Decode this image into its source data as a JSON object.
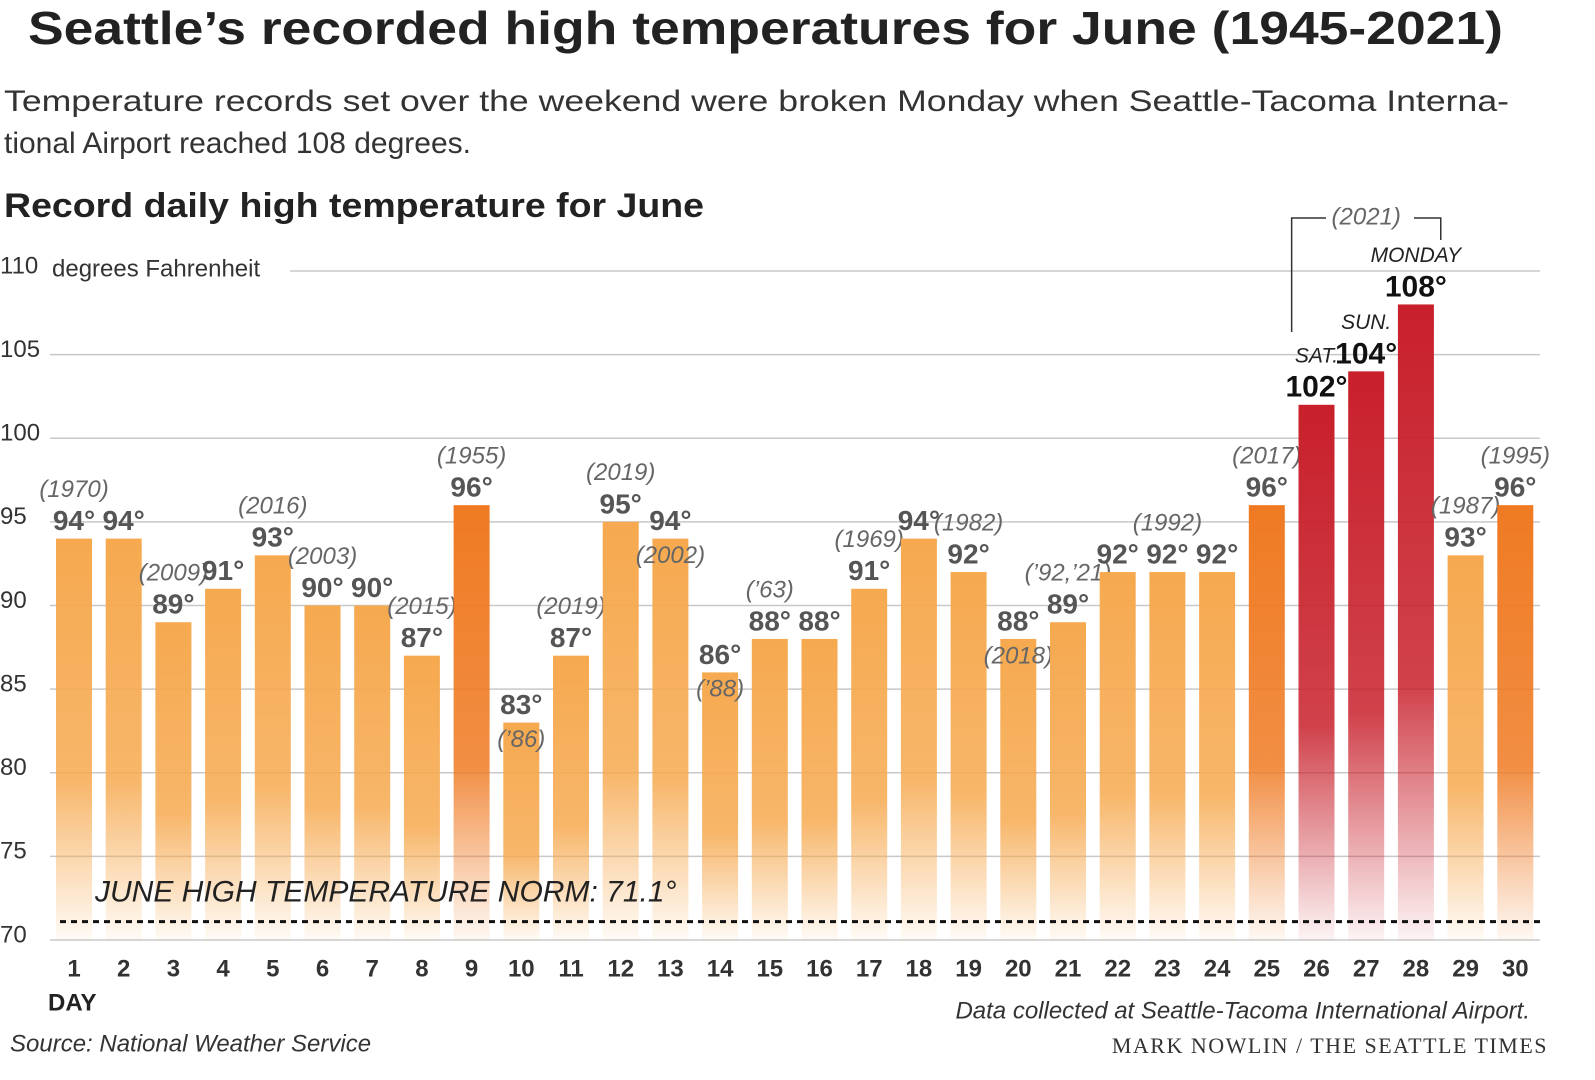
{
  "chart_data": {
    "type": "bar",
    "title": "Seattle’s recorded high temperatures for June (1945-2021)",
    "subtitle_lines": [
      "Temperature records set over the weekend were broken Monday when Seattle-Tacoma Interna-",
      "tional Airport reached 108 degrees."
    ],
    "chart_title": "Record daily high temperature for June",
    "y_axis_label": "degrees Fahrenheit",
    "x_axis_label": "DAY",
    "categories": [
      "1",
      "2",
      "3",
      "4",
      "5",
      "6",
      "7",
      "8",
      "9",
      "10",
      "11",
      "12",
      "13",
      "14",
      "15",
      "16",
      "17",
      "18",
      "19",
      "20",
      "21",
      "22",
      "23",
      "24",
      "25",
      "26",
      "27",
      "28",
      "29",
      "30"
    ],
    "values": [
      94,
      94,
      89,
      91,
      93,
      90,
      90,
      87,
      96,
      83,
      87,
      95,
      94,
      86,
      88,
      88,
      91,
      94,
      92,
      88,
      89,
      92,
      92,
      92,
      96,
      102,
      104,
      108,
      93,
      96
    ],
    "value_labels": [
      "94°",
      "94°",
      "89°",
      "91°",
      "93°",
      "90°",
      "90°",
      "87°",
      "96°",
      "83°",
      "87°",
      "95°",
      "94°",
      "86°",
      "88°",
      "88°",
      "91°",
      "94°",
      "92°",
      "88°",
      "89°",
      "92°",
      "92°",
      "92°",
      "96°",
      "102°",
      "104°",
      "108°",
      "93°",
      "96°"
    ],
    "year_labels": [
      "(1970)",
      null,
      "(2009)",
      null,
      "(2016)",
      "(2003)",
      null,
      "(2015)",
      "(1955)",
      "(’86)",
      "(2019)",
      "(2019)",
      "(2002)",
      "(’88)",
      "(’63)",
      null,
      "(1969)",
      null,
      "(1982)",
      "(2018)",
      "(’92,’21)",
      null,
      "(1992)",
      null,
      "(2017)",
      null,
      "(2021)",
      null,
      "(1987)",
      "(1995)"
    ],
    "day_names": [
      null,
      null,
      null,
      null,
      null,
      null,
      null,
      null,
      null,
      null,
      null,
      null,
      null,
      null,
      null,
      null,
      null,
      null,
      null,
      null,
      null,
      null,
      null,
      null,
      null,
      "SAT.",
      "SUN.",
      "MONDAY",
      null,
      null
    ],
    "colors": [
      "#f6a94f",
      "#f6a94f",
      "#f6a94f",
      "#f6a94f",
      "#f6a94f",
      "#f6a94f",
      "#f6a94f",
      "#f6a94f",
      "#ef7a22",
      "#f6a94f",
      "#f6a94f",
      "#f6a94f",
      "#f6a94f",
      "#f6a94f",
      "#f6a94f",
      "#f6a94f",
      "#f6a94f",
      "#f6a94f",
      "#f6a94f",
      "#f6a94f",
      "#f6a94f",
      "#f6a94f",
      "#f6a94f",
      "#f6a94f",
      "#ef7a22",
      "#c8202b",
      "#c8202b",
      "#c8202b",
      "#f6a94f",
      "#ef7a22"
    ],
    "ylim": [
      70,
      110
    ],
    "yticks": [
      70,
      75,
      80,
      85,
      90,
      95,
      100,
      105,
      110
    ],
    "grid": true,
    "norm": 71.1,
    "norm_label": "JUNE HIGH TEMPERATURE NORM: 71.1°",
    "note": "Data collected at Seattle-Tacoma International Airport.",
    "source": "Source: National Weather Service",
    "credit": "MARK NOWLIN / THE SEATTLE TIMES"
  }
}
